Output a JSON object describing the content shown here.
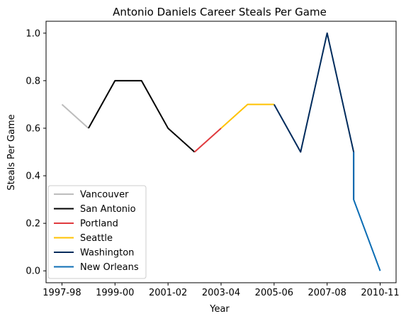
{
  "chart_data": {
    "type": "line",
    "title": "Antonio Daniels Career Steals Per Game",
    "xlabel": "Year",
    "ylabel": "Steals Per Game",
    "xlim": [
      -0.6,
      12.6
    ],
    "ylim": [
      -0.05,
      1.05
    ],
    "x_tick_positions": [
      0,
      2,
      4,
      6,
      8,
      10,
      12
    ],
    "x_tick_labels": [
      "1997-98",
      "1999-00",
      "2001-02",
      "2003-04",
      "2005-06",
      "2007-08",
      "2010-11"
    ],
    "y_ticks": [
      0.0,
      0.2,
      0.4,
      0.6,
      0.8,
      1.0
    ],
    "y_tick_labels": [
      "0.0",
      "0.2",
      "0.4",
      "0.6",
      "0.8",
      "1.0"
    ],
    "grid": false,
    "legend_position": "lower-left",
    "series": [
      {
        "name": "Vancouver",
        "color": "#bdbdbd",
        "x": [
          0,
          1
        ],
        "y": [
          0.7,
          0.6
        ]
      },
      {
        "name": "San Antonio",
        "color": "#000000",
        "x": [
          1,
          2,
          3,
          4,
          5
        ],
        "y": [
          0.6,
          0.8,
          0.8,
          0.6,
          0.5
        ]
      },
      {
        "name": "Portland",
        "color": "#e03a3e",
        "x": [
          5,
          6
        ],
        "y": [
          0.5,
          0.6
        ]
      },
      {
        "name": "Seattle",
        "color": "#ffc200",
        "x": [
          6,
          7,
          8
        ],
        "y": [
          0.6,
          0.7,
          0.7
        ]
      },
      {
        "name": "Washington",
        "color": "#002b5c",
        "x": [
          8,
          9,
          10,
          11,
          11
        ],
        "y": [
          0.7,
          0.5,
          1.0,
          0.5,
          0.3
        ]
      },
      {
        "name": "New Orleans",
        "color": "#0c6db4",
        "x": [
          11,
          11,
          12
        ],
        "y": [
          0.5,
          0.3,
          0.0
        ]
      }
    ]
  }
}
